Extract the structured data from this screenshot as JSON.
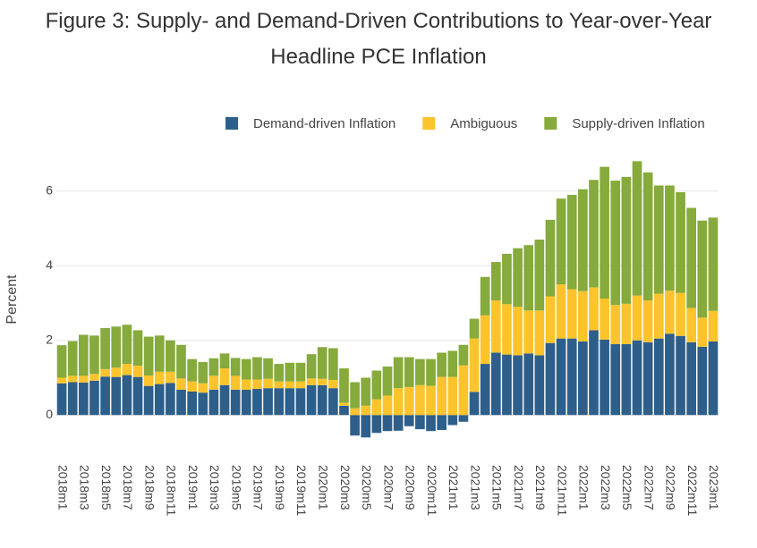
{
  "chart_data": {
    "type": "stacked-bar",
    "title": "Figure 3: Supply- and Demand-Driven Contributions to Year-over-Year Headline PCE Inflation",
    "y_label": "Percent",
    "categories": [
      "2018m1",
      null,
      "2018m3",
      null,
      "2018m5",
      null,
      "2018m7",
      null,
      "2018m9",
      null,
      "2018m11",
      null,
      "2019m1",
      null,
      "2019m3",
      null,
      "2019m5",
      null,
      "2019m7",
      null,
      "2019m9",
      null,
      "2019m11",
      null,
      "2020m1",
      null,
      "2020m3",
      null,
      "2020m5",
      null,
      "2020m7",
      null,
      "2020m9",
      null,
      "2020m11",
      null,
      "2021m1",
      null,
      "2021m3",
      null,
      "2021m5",
      null,
      "2021m7",
      null,
      "2021m9",
      null,
      "2021m11",
      null,
      "2022m1",
      null,
      "2022m3",
      null,
      "2022m5",
      null,
      "2022m7",
      null,
      "2022m9",
      null,
      "2022m11",
      null,
      "2023m1"
    ],
    "series": [
      {
        "name": "Demand-driven Inflation",
        "color": "#2e5f8a",
        "values": [
          0.85,
          0.88,
          0.87,
          0.92,
          1.03,
          1.02,
          1.07,
          1.02,
          0.78,
          0.83,
          0.86,
          0.68,
          0.63,
          0.6,
          0.68,
          0.8,
          0.68,
          0.68,
          0.7,
          0.72,
          0.72,
          0.72,
          0.72,
          0.8,
          0.8,
          0.72,
          0.25,
          -0.55,
          -0.6,
          -0.48,
          -0.43,
          -0.42,
          -0.3,
          -0.38,
          -0.43,
          -0.4,
          -0.27,
          -0.18,
          0.62,
          1.37,
          1.67,
          1.62,
          1.6,
          1.65,
          1.6,
          1.93,
          2.05,
          2.05,
          1.97,
          2.27,
          2.02,
          1.9,
          1.9,
          2.0,
          1.95,
          2.05,
          2.18,
          2.12,
          1.95,
          1.83,
          1.97
        ]
      },
      {
        "name": "Ambiguous",
        "color": "#fbc42c",
        "values": [
          0.15,
          0.17,
          0.18,
          0.18,
          0.2,
          0.25,
          0.3,
          0.3,
          0.28,
          0.33,
          0.3,
          0.3,
          0.27,
          0.25,
          0.37,
          0.45,
          0.37,
          0.27,
          0.25,
          0.25,
          0.18,
          0.18,
          0.18,
          0.18,
          0.17,
          0.22,
          0.08,
          0.18,
          0.25,
          0.42,
          0.52,
          0.72,
          0.75,
          0.8,
          0.78,
          1.02,
          1.02,
          1.33,
          1.43,
          1.3,
          1.4,
          1.35,
          1.3,
          1.15,
          1.2,
          1.25,
          1.45,
          1.32,
          1.35,
          1.15,
          1.1,
          1.05,
          1.08,
          1.2,
          1.12,
          1.2,
          1.15,
          1.15,
          0.92,
          0.78,
          0.82
        ]
      },
      {
        "name": "Supply-driven Inflation",
        "color": "#86aa3c",
        "values": [
          0.87,
          0.93,
          1.1,
          1.03,
          1.1,
          1.1,
          1.05,
          0.95,
          1.04,
          0.97,
          0.84,
          0.9,
          0.6,
          0.57,
          0.47,
          0.4,
          0.48,
          0.55,
          0.6,
          0.55,
          0.47,
          0.5,
          0.5,
          0.65,
          0.85,
          0.85,
          0.92,
          0.7,
          0.75,
          0.77,
          0.78,
          0.83,
          0.8,
          0.7,
          0.72,
          0.65,
          0.7,
          0.55,
          0.53,
          1.03,
          1.03,
          1.35,
          1.57,
          1.75,
          1.9,
          2.05,
          2.3,
          2.53,
          2.73,
          2.88,
          3.53,
          3.33,
          3.4,
          3.6,
          3.43,
          2.9,
          2.82,
          2.7,
          2.68,
          2.6,
          2.5
        ]
      }
    ],
    "ylim": [
      -1,
      7
    ],
    "yticks": [
      0,
      2,
      4,
      6
    ],
    "grid": true,
    "legend": "top"
  }
}
